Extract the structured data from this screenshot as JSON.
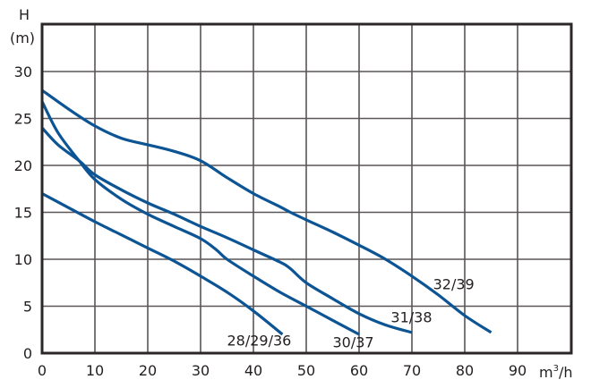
{
  "chart_data": {
    "type": "line",
    "title": "",
    "xlabel": "m³/h",
    "ylabel": "H (m)",
    "ylabel_lines": [
      "H",
      "(m)"
    ],
    "xlabel_parts": {
      "base": "m",
      "sup": "3",
      "suffix": "/h"
    },
    "xlim": [
      0,
      100
    ],
    "ylim": [
      0,
      35
    ],
    "x_ticks": [
      0,
      10,
      20,
      30,
      40,
      50,
      60,
      70,
      80,
      90
    ],
    "y_ticks": [
      0,
      5,
      10,
      15,
      20,
      25,
      30
    ],
    "grid": true,
    "legend": "inline labels at curve ends",
    "colors": {
      "curve": "#0c5494",
      "grid": "#5a5556",
      "frame": "#2b2727",
      "text": "#231f20"
    },
    "series": [
      {
        "name": "28/29/36",
        "label_pos": [
          35,
          0.8
        ],
        "points": [
          [
            0,
            17
          ],
          [
            5,
            15.5
          ],
          [
            10,
            14
          ],
          [
            15,
            12.6
          ],
          [
            20,
            11.2
          ],
          [
            25,
            9.8
          ],
          [
            30,
            8.2
          ],
          [
            35,
            6.5
          ],
          [
            40,
            4.5
          ],
          [
            45.5,
            2
          ]
        ]
      },
      {
        "name": "30/37",
        "label_pos": [
          55,
          0.6
        ],
        "points": [
          [
            0,
            26.8
          ],
          [
            3,
            23.5
          ],
          [
            7,
            20.5
          ],
          [
            10,
            18.5
          ],
          [
            15,
            16.4
          ],
          [
            20,
            14.8
          ],
          [
            25,
            13.5
          ],
          [
            30,
            12.2
          ],
          [
            33,
            11
          ],
          [
            35,
            10
          ],
          [
            40,
            8.2
          ],
          [
            45,
            6.5
          ],
          [
            50,
            5
          ],
          [
            55,
            3.5
          ],
          [
            60,
            2
          ]
        ]
      },
      {
        "name": "31/38",
        "label_pos": [
          66,
          3.3
        ],
        "points": [
          [
            0,
            24
          ],
          [
            3,
            22.2
          ],
          [
            7,
            20.5
          ],
          [
            10,
            19
          ],
          [
            15,
            17.4
          ],
          [
            20,
            16
          ],
          [
            25,
            14.8
          ],
          [
            30,
            13.5
          ],
          [
            35,
            12.3
          ],
          [
            40,
            11
          ],
          [
            45,
            9.7
          ],
          [
            47,
            9
          ],
          [
            50,
            7.5
          ],
          [
            55,
            5.8
          ],
          [
            60,
            4.2
          ],
          [
            65,
            3
          ],
          [
            70,
            2.2
          ]
        ]
      },
      {
        "name": "32/39",
        "label_pos": [
          74,
          6.8
        ],
        "points": [
          [
            0,
            28
          ],
          [
            5,
            26
          ],
          [
            10,
            24.2
          ],
          [
            15,
            22.9
          ],
          [
            20,
            22.2
          ],
          [
            25,
            21.5
          ],
          [
            30,
            20.5
          ],
          [
            35,
            18.7
          ],
          [
            40,
            17
          ],
          [
            45,
            15.6
          ],
          [
            47,
            15
          ],
          [
            50,
            14.2
          ],
          [
            55,
            12.9
          ],
          [
            60,
            11.5
          ],
          [
            65,
            10
          ],
          [
            70,
            8.2
          ],
          [
            75,
            6.2
          ],
          [
            80,
            4
          ],
          [
            85,
            2.2
          ]
        ]
      }
    ]
  }
}
